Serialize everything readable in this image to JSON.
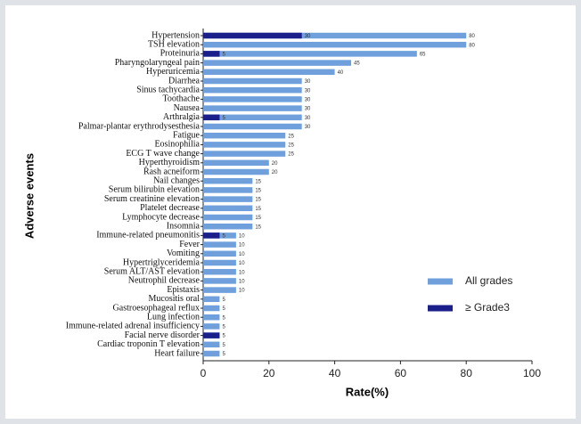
{
  "chart_data": {
    "type": "hbar-overlap",
    "xlabel": "Rate(%)",
    "ylabel": "Adverse events",
    "categories": [
      "Hypertension",
      "TSH elevation",
      "Proteinuria",
      "Pharyngolaryngeal pain",
      "Hyperuricemia",
      "Diarrhea",
      "Sinus tachycardia",
      "Toothache",
      "Nausea",
      "Arthralgia",
      "Palmar-plantar erythrodysesthesia",
      "Fatigue",
      "Eosinophilia",
      "ECG T wave change",
      "Hyperthyroidism",
      "Rash acneiform",
      "Nail changes",
      "Serum bilirubin elevation",
      "Serum creatinine elevation",
      "Platelet decrease",
      "Lymphocyte decrease",
      "Insomnia",
      "Immune-related pneumonitis",
      "Fever",
      "Vomiting",
      "Hypertriglyceridemia",
      "Serum ALT/AST elevation",
      "Neutrophil decrease",
      "Epistaxis",
      "Mucositis oral",
      "Gastroesophageal reflux",
      "Lung infection",
      "Immune-related adrenal insufficiency",
      "Facial nerve disorder",
      "Cardiac troponin T elevation",
      "Heart failure"
    ],
    "series": [
      {
        "name": "All grades",
        "color": "#6fa0dc",
        "values": [
          80,
          80,
          65,
          45,
          40,
          30,
          30,
          30,
          30,
          30,
          30,
          25,
          25,
          25,
          20,
          20,
          15,
          15,
          15,
          15,
          15,
          15,
          10,
          10,
          10,
          10,
          10,
          10,
          10,
          5,
          5,
          5,
          5,
          5,
          5,
          5
        ]
      },
      {
        "name": "≥ Grade3",
        "color": "#1a1f8a",
        "values": [
          30,
          null,
          5,
          null,
          null,
          null,
          null,
          null,
          null,
          5,
          null,
          null,
          null,
          null,
          null,
          null,
          null,
          null,
          null,
          null,
          null,
          null,
          5,
          null,
          null,
          null,
          null,
          null,
          null,
          null,
          null,
          null,
          null,
          5,
          null,
          null
        ]
      }
    ],
    "xlim": [
      0,
      100
    ],
    "xticks": [
      0,
      20,
      40,
      60,
      80,
      100
    ]
  }
}
